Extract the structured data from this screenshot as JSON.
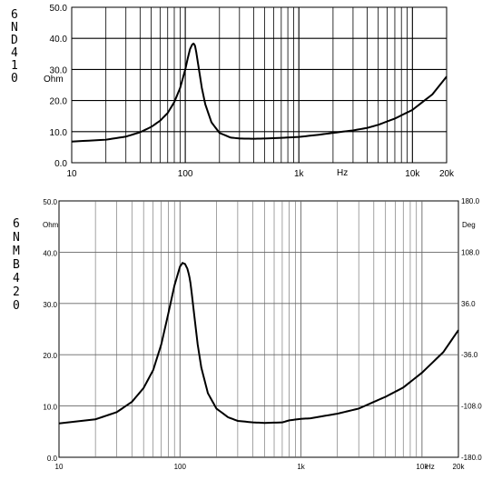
{
  "chart_data": [
    {
      "type": "line",
      "model_label": "6ND410",
      "xlabel": "Hz",
      "ylabel": "Ohm",
      "x_scale": "log",
      "xlim": [
        10,
        20000
      ],
      "ylim": [
        0,
        50
      ],
      "x_tick_labels": [
        "10",
        "100",
        "1k",
        "10k",
        "20k"
      ],
      "y_tick_labels": [
        "0.0",
        "10.0",
        "20.0",
        "30.0",
        "40.0",
        "50.0"
      ],
      "series": [
        {
          "x": [
            10,
            20,
            30,
            40,
            50,
            60,
            70,
            80,
            90,
            100,
            105,
            110,
            115,
            118,
            120,
            122,
            125,
            130,
            140,
            150,
            170,
            200,
            250,
            300,
            400,
            500,
            700,
            1000,
            1500,
            2000,
            3000,
            4000,
            5000,
            7000,
            10000,
            15000,
            20000
          ],
          "y": [
            6.8,
            7.4,
            8.4,
            9.8,
            11.5,
            13.5,
            16.0,
            19.5,
            24.0,
            30.0,
            33.5,
            36.5,
            38.0,
            38.3,
            38.1,
            37.5,
            35.5,
            31.5,
            24.0,
            18.8,
            13.0,
            9.6,
            8.1,
            7.8,
            7.7,
            7.8,
            8.0,
            8.3,
            9.0,
            9.6,
            10.4,
            11.2,
            12.2,
            14.2,
            17.0,
            22.0,
            27.7
          ]
        }
      ]
    },
    {
      "type": "line",
      "model_label": "6NMB420",
      "xlabel": "Hz",
      "ylabel": "Ohm",
      "y2label": "Deg",
      "x_scale": "log",
      "xlim": [
        10,
        20000
      ],
      "ylim": [
        0,
        50
      ],
      "y2lim": [
        -180,
        180
      ],
      "x_tick_labels": [
        "10",
        "100",
        "1k",
        "10k",
        "20k"
      ],
      "y_tick_labels": [
        "0.0",
        "10.0",
        "20.0",
        "30.0",
        "40.0",
        "50.0"
      ],
      "y2_tick_labels": [
        "-180.0",
        "-108.0",
        "-36.0",
        "36.0",
        "108.0",
        "180.0"
      ],
      "series": [
        {
          "x": [
            10,
            20,
            30,
            40,
            50,
            60,
            70,
            80,
            90,
            100,
            105,
            110,
            115,
            118,
            120,
            122,
            125,
            130,
            140,
            150,
            170,
            200,
            250,
            300,
            400,
            500,
            700,
            800,
            1000,
            1200,
            1500,
            2000,
            3000,
            4000,
            5000,
            7000,
            10000,
            15000,
            20000
          ],
          "y": [
            6.6,
            7.4,
            8.8,
            10.8,
            13.5,
            17.0,
            22.0,
            28.0,
            33.5,
            37.2,
            37.9,
            37.7,
            36.8,
            35.8,
            35.0,
            34.0,
            32.0,
            28.5,
            22.0,
            17.5,
            12.5,
            9.5,
            7.8,
            7.1,
            6.8,
            6.7,
            6.8,
            7.2,
            7.5,
            7.6,
            8.0,
            8.5,
            9.5,
            10.8,
            11.8,
            13.6,
            16.5,
            20.5,
            24.8
          ]
        }
      ]
    }
  ]
}
